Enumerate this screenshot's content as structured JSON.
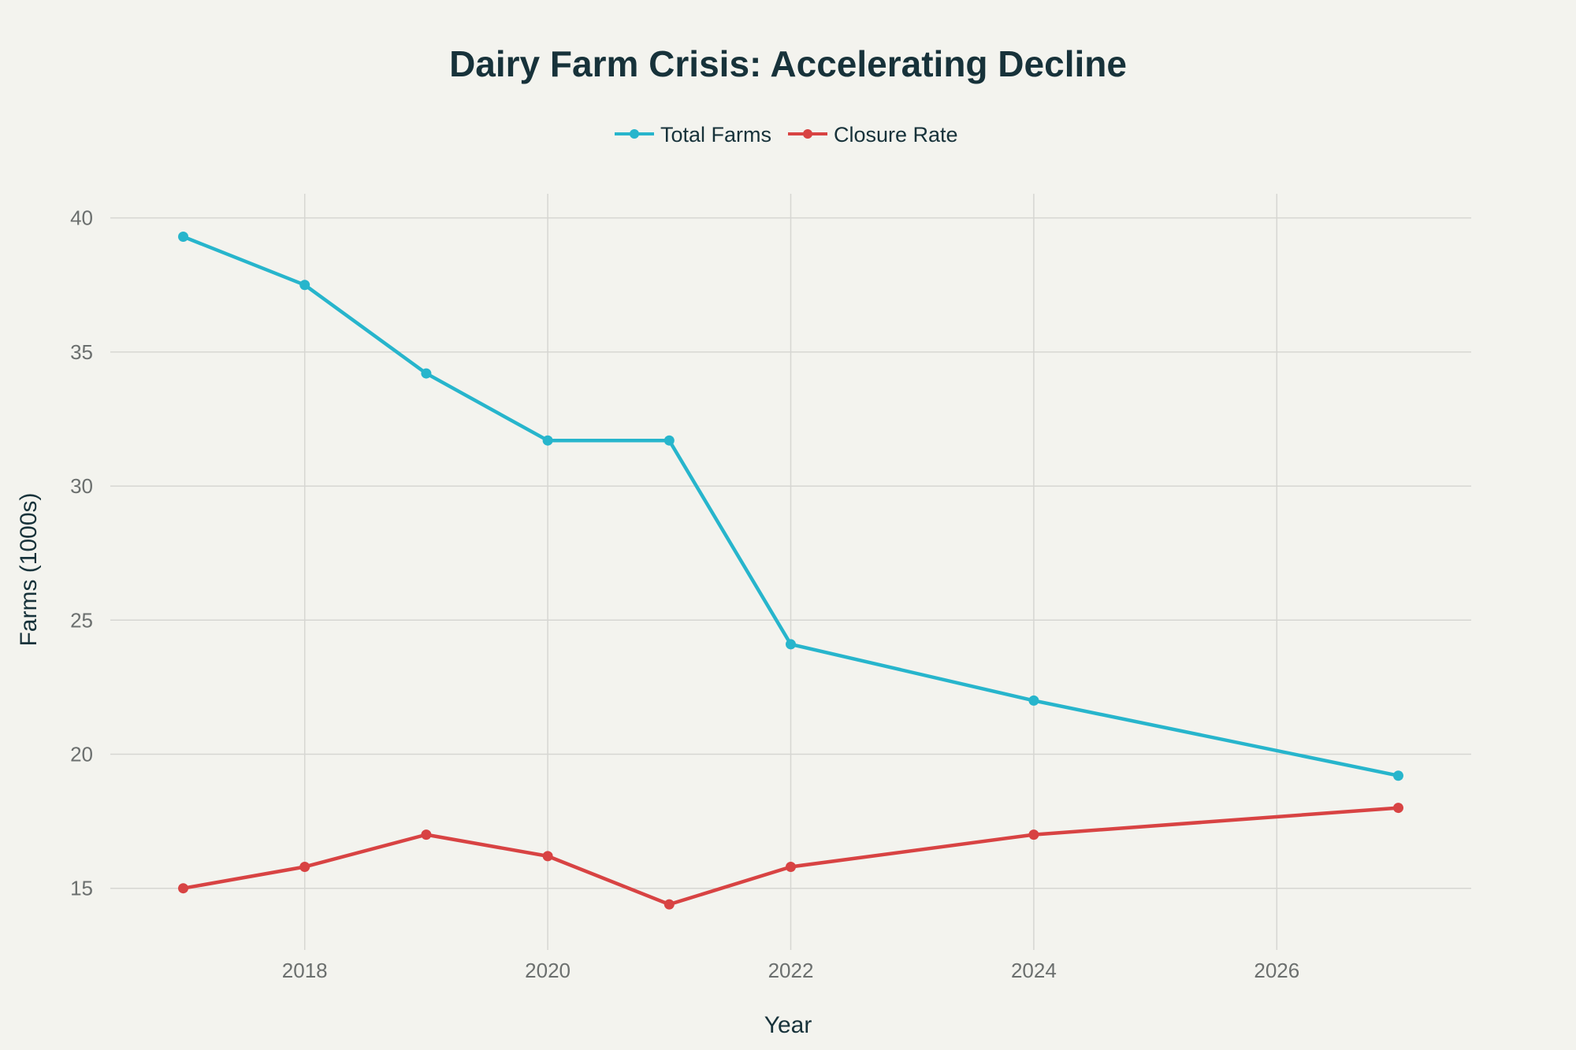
{
  "chart_data": {
    "type": "line",
    "title": "Dairy Farm Crisis: Accelerating Decline",
    "xlabel": "Year",
    "ylabel": "Farms (1000s)",
    "xlim": [
      2016.4,
      2027.6
    ],
    "ylim": [
      12.7,
      40.9
    ],
    "x_ticks": [
      2018,
      2020,
      2022,
      2024,
      2026
    ],
    "y_ticks": [
      15,
      20,
      25,
      30,
      35,
      40
    ],
    "grid": true,
    "legend_position": "top-center",
    "series": [
      {
        "name": "Total Farms",
        "color": "#27b5cc",
        "x": [
          2017,
          2018,
          2019,
          2020,
          2021,
          2022,
          2024,
          2027
        ],
        "values": [
          39.3,
          37.5,
          34.2,
          31.7,
          31.7,
          24.1,
          22.0,
          19.2
        ]
      },
      {
        "name": "Closure Rate",
        "color": "#d84343",
        "x": [
          2017,
          2018,
          2019,
          2020,
          2021,
          2022,
          2024,
          2027
        ],
        "values": [
          15.0,
          15.8,
          17.0,
          16.2,
          14.4,
          15.8,
          17.0,
          18.0
        ]
      }
    ]
  }
}
